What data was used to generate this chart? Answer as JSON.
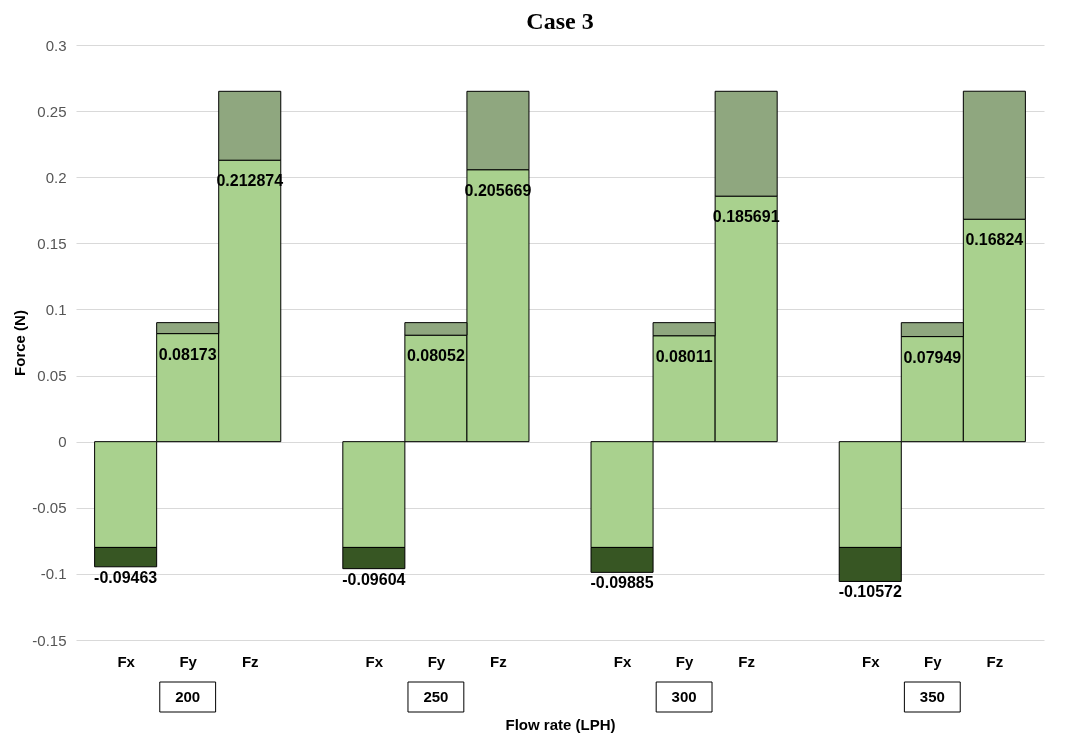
{
  "chart_data": {
    "type": "bar",
    "title": "Case 3",
    "xlabel": "Flow rate (LPH)",
    "ylabel": "Force (N)",
    "categories": [
      "Fx",
      "Fy",
      "Fz",
      "Fx",
      "Fy",
      "Fz",
      "Fx",
      "Fy",
      "Fz",
      "Fx",
      "Fy",
      "Fz"
    ],
    "annotations": [
      "200",
      "250",
      "300",
      "350"
    ],
    "stacked": true,
    "series": [
      {
        "color": "#a9d18e",
        "values": [
          -0.08,
          0.08173,
          0.212874,
          -0.08,
          0.08052,
          0.205669,
          -0.08,
          0.08011,
          0.185691,
          -0.08,
          0.07949,
          0.16824
        ],
        "value_labels": [
          null,
          "0.08173",
          "0.212874",
          null,
          "0.08052",
          "0.205669",
          null,
          "0.08011",
          "0.185691",
          null,
          "0.07949",
          "0.16824"
        ]
      },
      {
        "colors": [
          "#375623",
          "#8fa77f",
          "#8fa77f",
          "#375623",
          "#8fa77f",
          "#8fa77f",
          "#375623",
          "#8fa77f",
          "#8fa77f",
          "#375623",
          "#8fa77f",
          "#8fa77f"
        ],
        "values": [
          -0.01463,
          0.0083,
          0.0521,
          -0.01604,
          0.0095,
          0.0593,
          -0.01885,
          0.0099,
          0.0793,
          -0.02572,
          0.0105,
          0.0968
        ]
      }
    ],
    "totals": [
      "-0.09463",
      null,
      null,
      "-0.09604",
      null,
      null,
      "-0.09885",
      null,
      null,
      "-0.10572",
      null,
      null
    ],
    "ylim": [
      -0.15,
      0.3
    ],
    "yticks": [
      -0.15,
      -0.1,
      -0.05,
      0,
      0.05,
      0.1,
      0.15,
      0.2,
      0.25,
      0.3
    ],
    "grid": "y"
  }
}
